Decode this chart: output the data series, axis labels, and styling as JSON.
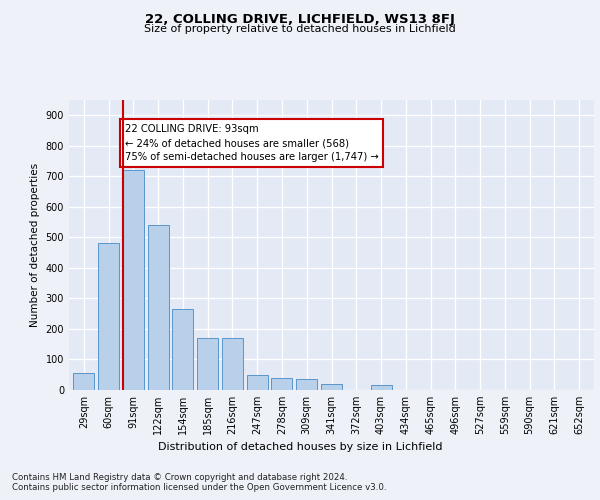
{
  "title1": "22, COLLING DRIVE, LICHFIELD, WS13 8FJ",
  "title2": "Size of property relative to detached houses in Lichfield",
  "xlabel": "Distribution of detached houses by size in Lichfield",
  "ylabel": "Number of detached properties",
  "categories": [
    "29sqm",
    "60sqm",
    "91sqm",
    "122sqm",
    "154sqm",
    "185sqm",
    "216sqm",
    "247sqm",
    "278sqm",
    "309sqm",
    "341sqm",
    "372sqm",
    "403sqm",
    "434sqm",
    "465sqm",
    "496sqm",
    "527sqm",
    "559sqm",
    "590sqm",
    "621sqm",
    "652sqm"
  ],
  "values": [
    55,
    480,
    720,
    540,
    265,
    170,
    170,
    48,
    40,
    35,
    20,
    0,
    15,
    0,
    0,
    0,
    0,
    0,
    0,
    0,
    0
  ],
  "bar_color": "#b8d0ea",
  "bar_edge_color": "#5a96cc",
  "highlight_bar_index": 2,
  "highlight_color": "#cc0000",
  "annotation_text": "22 COLLING DRIVE: 93sqm\n← 24% of detached houses are smaller (568)\n75% of semi-detached houses are larger (1,747) →",
  "annotation_box_color": "#ffffff",
  "annotation_box_edge": "#cc0000",
  "yticks": [
    0,
    100,
    200,
    300,
    400,
    500,
    600,
    700,
    800,
    900
  ],
  "ylim": [
    0,
    950
  ],
  "footer1": "Contains HM Land Registry data © Crown copyright and database right 2024.",
  "footer2": "Contains public sector information licensed under the Open Government Licence v3.0.",
  "background_color": "#eef2f8",
  "plot_bg_color": "#e4eaf5"
}
